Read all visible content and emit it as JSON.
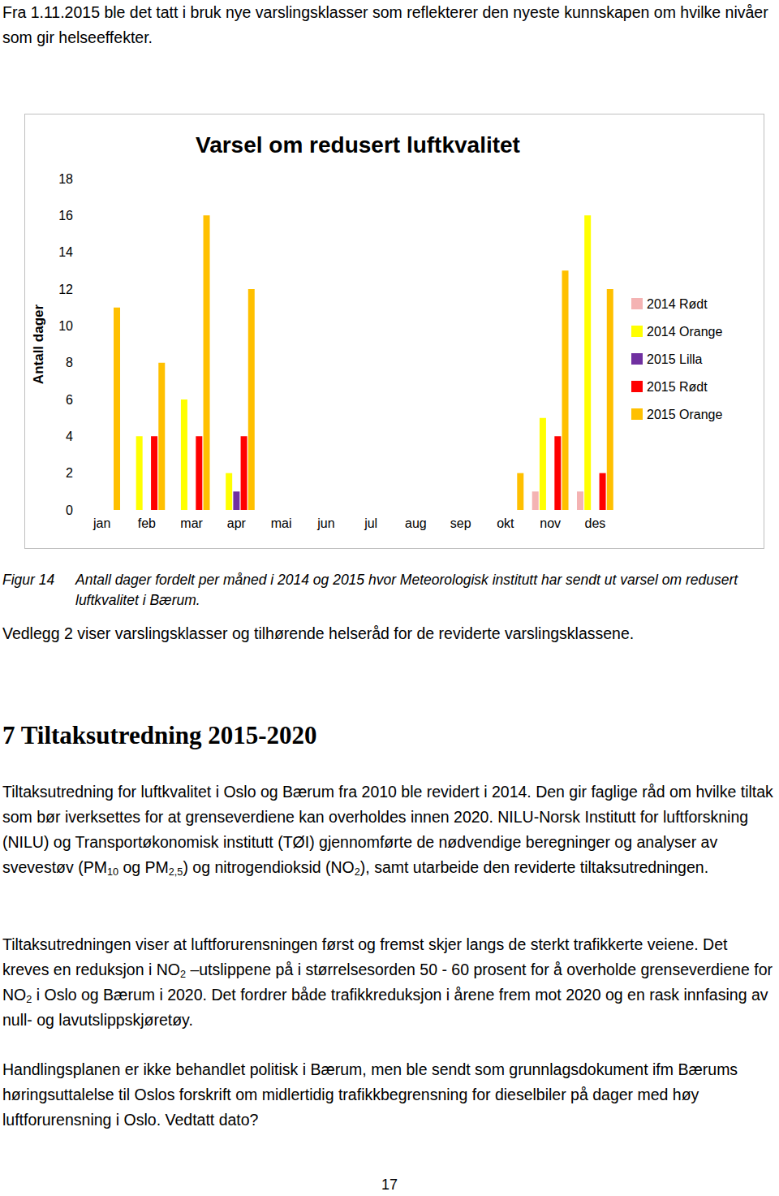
{
  "page": {
    "intro": "Fra 1.11.2015 ble det tatt i bruk nye varslingsklasser som reflekterer den nyeste kunnskapen om hvilke nivåer som gir helseeffekter.",
    "caption": {
      "label": "Figur 14",
      "text": "Antall dager fordelt per måned i 2014 og 2015  hvor Meteorologisk institutt har sendt ut varsel om redusert luftkvalitet i Bærum."
    },
    "after_caption": "Vedlegg 2 viser varslingsklasser og tilhørende helseråd for de reviderte varslingsklassene.",
    "heading": "7 Tiltaksutredning 2015-2020",
    "paragraphs": [
      [
        {
          "text": "Tiltaksutredning for luftkvalitet i Oslo og Bærum fra 2010 ble revidert i 2014. Den gir faglige råd om hvilke tiltak som bør iverksettes for at grenseverdiene kan overholdes innen 2020. NILU-Norsk Institutt for luftforskning (NILU) og Transportøkonomisk institutt (TØI) gjennomførte de nødvendige beregninger og analyser av svevestøv (PM"
        },
        {
          "text": "10",
          "sub": true
        },
        {
          "text": " og PM"
        },
        {
          "text": "2,5",
          "sub": true
        },
        {
          "text": ") og nitrogendioksid (NO"
        },
        {
          "text": "2",
          "sub": true
        },
        {
          "text": "), samt utarbeide den reviderte tiltaksutredningen."
        }
      ],
      [
        {
          "text": "Tiltaksutredningen viser at luftforurensningen først og fremst skjer langs de sterkt trafikkerte veiene. Det kreves en reduksjon i NO"
        },
        {
          "text": "2",
          "sub": true
        },
        {
          "text": " –utslippene på i størrelsesorden 50 - 60 prosent for å overholde grenseverdiene for NO"
        },
        {
          "text": "2",
          "sub": true
        },
        {
          "text": " i Oslo og Bærum i 2020. Det fordrer både trafikkreduksjon i årene frem mot 2020 og en rask innfasing av null- og lavutslippskjøretøy."
        }
      ],
      [
        {
          "text": "Handlingsplanen er ikke behandlet politisk i Bærum, men ble sendt som grunnlagsdokument ifm Bærums høringsuttalelse til Oslos forskrift om midlertidig trafikkbegrensning for dieselbiler på dager med høy luftforurensning i Oslo. Vedtatt dato?"
        }
      ]
    ],
    "page_number": "17"
  },
  "chart_data": {
    "type": "bar",
    "title": "Varsel om redusert luftkvalitet",
    "y_label": "Antall dager",
    "categories": [
      "jan",
      "feb",
      "mar",
      "apr",
      "mai",
      "jun",
      "jul",
      "aug",
      "sep",
      "okt",
      "nov",
      "des"
    ],
    "series": [
      {
        "name": "2014 Rødt",
        "color": "#f4b3b3",
        "values": [
          null,
          null,
          null,
          null,
          null,
          null,
          null,
          null,
          null,
          null,
          1,
          1
        ]
      },
      {
        "name": "2014 Orange",
        "color": "#ffff00",
        "values": [
          null,
          4,
          6,
          2,
          null,
          null,
          null,
          null,
          null,
          null,
          5,
          16
        ]
      },
      {
        "name": "2015 Lilla",
        "color": "#7030a0",
        "values": [
          null,
          null,
          null,
          1,
          null,
          null,
          null,
          null,
          null,
          null,
          null,
          null
        ]
      },
      {
        "name": "2015 Rødt",
        "color": "#ff0000",
        "values": [
          null,
          4,
          4,
          4,
          null,
          null,
          null,
          null,
          null,
          null,
          4,
          2
        ]
      },
      {
        "name": "2015 Orange",
        "color": "#ffc000",
        "values": [
          11,
          8,
          16,
          12,
          null,
          null,
          null,
          null,
          null,
          2,
          13,
          12
        ]
      }
    ],
    "ylim": [
      0,
      18
    ],
    "yticks": [
      0,
      2,
      4,
      6,
      8,
      10,
      12,
      14,
      16,
      18
    ],
    "grid": false,
    "legend": "right"
  }
}
